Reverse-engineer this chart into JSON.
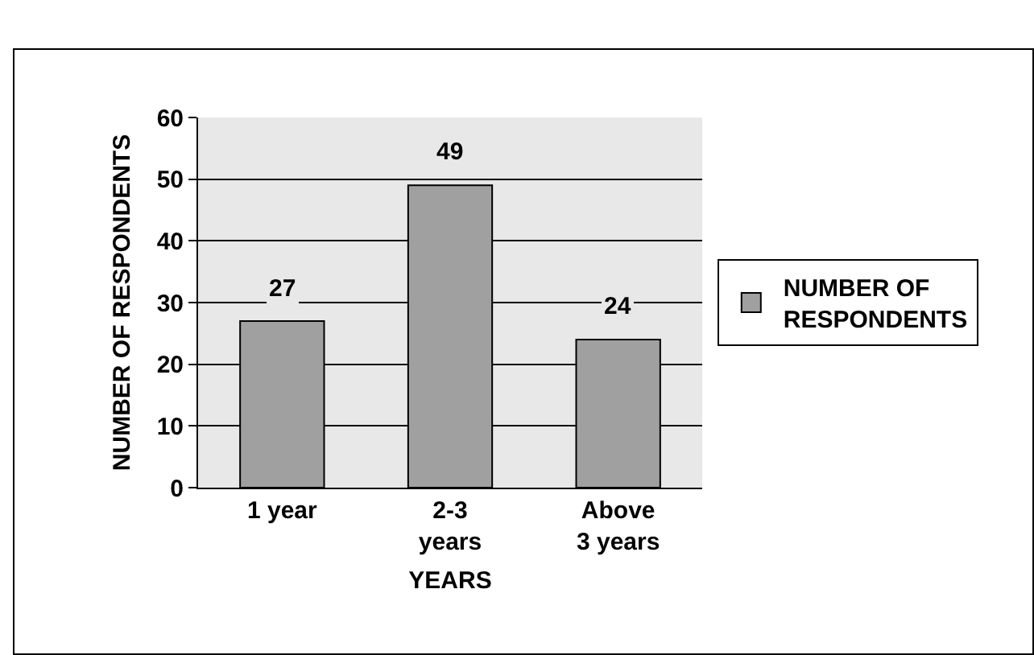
{
  "chart_data": {
    "type": "bar",
    "xlabel": "YEARS",
    "ylabel": "NUMBER OF RESPONDENTS",
    "categories": [
      "1 year",
      "2-3 years",
      "Above 3 years"
    ],
    "series": [
      {
        "name": "NUMBER OF RESPONDENTS",
        "color": "#a0a0a0",
        "values": [
          27,
          49,
          24
        ]
      }
    ],
    "ylim": [
      0,
      60
    ],
    "yticks": [
      0,
      10,
      20,
      30,
      40,
      50,
      60
    ],
    "grid": "y",
    "legend": "right",
    "data_labels": true
  }
}
